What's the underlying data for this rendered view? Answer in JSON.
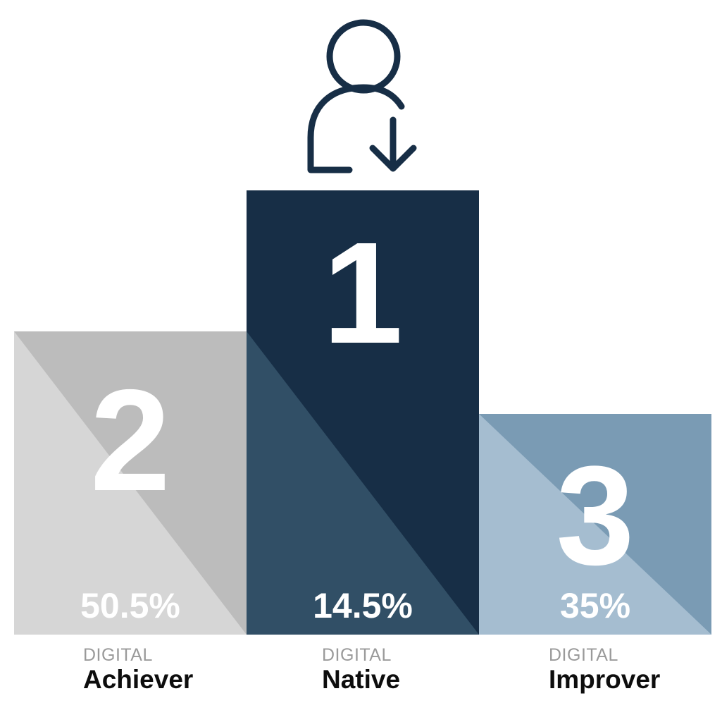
{
  "podium": [
    {
      "id": "achiever",
      "rank": "2",
      "percent": "50.5%",
      "share": 50.5,
      "caption_prefix": "DIGITAL",
      "caption_name": "Achiever",
      "colors": {
        "main": "#bcbcbc",
        "shade": "#d6d6d6"
      }
    },
    {
      "id": "native",
      "rank": "1",
      "percent": "14.5%",
      "share": 14.5,
      "caption_prefix": "DIGITAL",
      "caption_name": "Native",
      "colors": {
        "main": "#172e46",
        "shade": "#314f66"
      }
    },
    {
      "id": "improver",
      "rank": "3",
      "percent": "35%",
      "share": 35,
      "caption_prefix": "DIGITAL",
      "caption_name": "Improver",
      "colors": {
        "main": "#7a9bb4",
        "shade": "#a5bdd0"
      }
    }
  ],
  "icon": {
    "name": "user-download-icon",
    "color": "#172e46"
  }
}
